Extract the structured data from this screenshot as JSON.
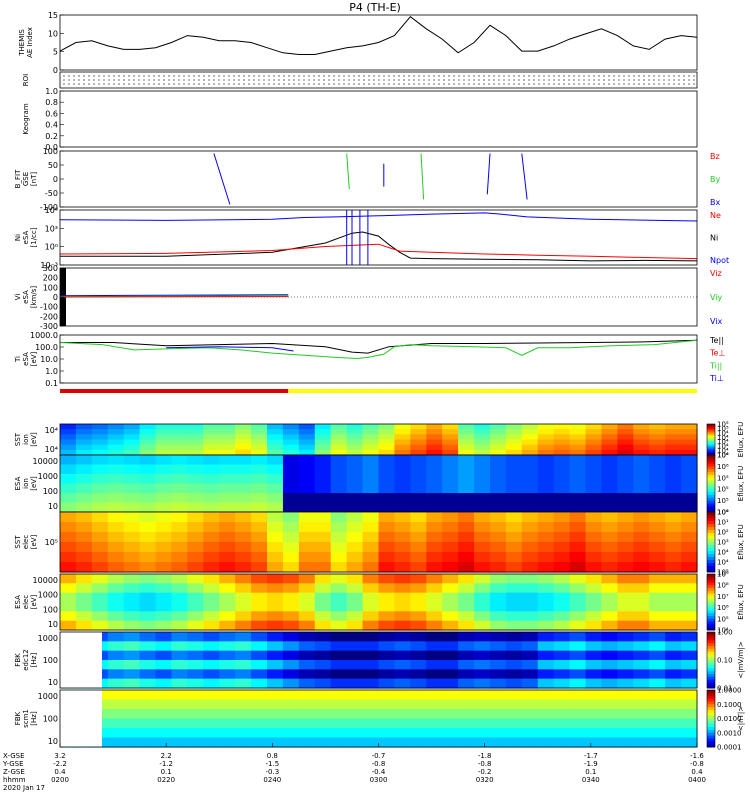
{
  "title": "P4 (TH-E)",
  "colors": {
    "red": "#ff0000",
    "green": "#22cc22",
    "blue": "#0000ff",
    "black": "#000000",
    "roi_bar": "#dd0000",
    "roi_bar_right": "#ffff00"
  },
  "chart_data": [
    {
      "panel": "ae_index",
      "type": "line",
      "ylabel_lines": [
        "THEMIS",
        "AE Index"
      ],
      "yticks": [
        "0",
        "5",
        "10",
        "15"
      ],
      "ylim": [
        0,
        16
      ],
      "series": [
        {
          "color": "black",
          "x": [
            0,
            3,
            6,
            9,
            12,
            15,
            18,
            21,
            24,
            27,
            30,
            33,
            36,
            39,
            42,
            45,
            48,
            51,
            54,
            57,
            60,
            63,
            66,
            69,
            72,
            75,
            78,
            81,
            84,
            87,
            90,
            93,
            96,
            99,
            102,
            105,
            108,
            111,
            114,
            117,
            120
          ],
          "values": [
            5.5,
            8,
            8.5,
            7,
            6,
            6,
            6.5,
            8,
            10,
            9.5,
            8.5,
            8.5,
            8,
            6.5,
            5,
            4.5,
            4.5,
            5.5,
            6.5,
            7,
            8,
            10,
            15.5,
            12,
            9,
            5,
            8,
            13,
            10,
            5.5,
            5.5,
            7,
            9,
            10.5,
            12,
            10,
            7,
            6,
            9,
            10,
            9.5
          ]
        }
      ]
    },
    {
      "panel": "roi",
      "type": "scatter",
      "ylabel_lines": [
        "ROI"
      ],
      "yticks": [],
      "ylim": [
        0,
        1
      ],
      "series": []
    },
    {
      "panel": "keogram",
      "type": "line",
      "ylabel_lines": [
        "Keogram"
      ],
      "yticks": [
        "0.0",
        "0.2",
        "0.4",
        "0.6",
        "0.8",
        "1.0"
      ],
      "ylim": [
        0,
        1
      ],
      "series": []
    },
    {
      "panel": "b_fit",
      "type": "line",
      "ylabel_lines": [
        "B_FIT",
        "GSE",
        "[nT]"
      ],
      "yticks": [
        "-100",
        "-50",
        "0",
        "50",
        "100"
      ],
      "ylim": [
        -110,
        110
      ],
      "legend": [
        {
          "text": "Bz",
          "color": "red"
        },
        {
          "text": "By",
          "color": "green"
        },
        {
          "text": "Bx",
          "color": "blue"
        }
      ],
      "series": [
        {
          "color": "blue",
          "x": [
            29,
            32
          ],
          "values": [
            100,
            -100
          ]
        },
        {
          "color": "green",
          "x": [
            54,
            54.5
          ],
          "values": [
            100,
            -40
          ]
        },
        {
          "color": "blue",
          "x": [
            61,
            61
          ],
          "values": [
            60,
            -30
          ]
        },
        {
          "color": "green",
          "x": [
            68,
            68.5
          ],
          "values": [
            100,
            -80
          ]
        },
        {
          "color": "blue",
          "x": [
            81,
            80.5
          ],
          "values": [
            100,
            -60
          ]
        },
        {
          "color": "blue",
          "x": [
            87,
            88
          ],
          "values": [
            100,
            -80
          ]
        }
      ]
    },
    {
      "panel": "ni",
      "type": "line",
      "ylabel_lines": [
        "Ni",
        "eSA",
        "[1/cc]"
      ],
      "yticks": [
        "10⁻³",
        "10⁰",
        "10³",
        "10⁶"
      ],
      "ylim": [
        -3,
        6.5
      ],
      "legend": [
        {
          "text": "Ne",
          "color": "red"
        },
        {
          "text": "Ni",
          "color": "black"
        },
        {
          "text": "Npot",
          "color": "blue"
        }
      ],
      "series": [
        {
          "color": "blue",
          "x": [
            0,
            20,
            40,
            46,
            52,
            60,
            70,
            80,
            83,
            88,
            100,
            120
          ],
          "values": [
            4.8,
            4.7,
            4.9,
            5.2,
            5.3,
            5.5,
            5.8,
            6,
            5.8,
            5.3,
            4.9,
            4.6
          ]
        },
        {
          "color": "black",
          "x": [
            0,
            20,
            40,
            50,
            55,
            57,
            60,
            62,
            64,
            66,
            70,
            80,
            90,
            100,
            110,
            120
          ],
          "values": [
            -1.5,
            -1.5,
            -0.8,
            0.8,
            2.5,
            2.7,
            2,
            0.5,
            -0.8,
            -1.8,
            -1.9,
            -2,
            -2.1,
            -2.3,
            -2.2,
            -2.3
          ]
        },
        {
          "color": "red",
          "x": [
            0,
            20,
            40,
            50,
            60,
            64,
            70,
            80,
            90,
            100,
            110,
            120
          ],
          "values": [
            -1.1,
            -1,
            -0.5,
            0.2,
            0.6,
            -0.6,
            -0.8,
            -1.1,
            -1.3,
            -1.5,
            -1.7,
            -1.9
          ]
        },
        {
          "color": "blue",
          "x": [
            54,
            54
          ],
          "values": [
            6.5,
            -3
          ]
        },
        {
          "color": "blue",
          "x": [
            55,
            55
          ],
          "values": [
            6.5,
            -3
          ]
        },
        {
          "color": "blue",
          "x": [
            56.5,
            56.5
          ],
          "values": [
            6.5,
            -3
          ]
        },
        {
          "color": "blue",
          "x": [
            58,
            58
          ],
          "values": [
            6.5,
            -3
          ]
        }
      ]
    },
    {
      "panel": "vi",
      "type": "line",
      "ylabel_lines": [
        "Vi",
        "eSA",
        "[km/s]"
      ],
      "yticks": [
        "-300",
        "-200",
        "-100",
        "0",
        "100",
        "200",
        "300"
      ],
      "ylim": [
        -330,
        330
      ],
      "legend": [
        {
          "text": "Viz",
          "color": "red"
        },
        {
          "text": "Viy",
          "color": "green"
        },
        {
          "text": "Vix",
          "color": "blue"
        }
      ],
      "series": [
        {
          "color": "blue",
          "x": [
            0,
            43
          ],
          "values": [
            15,
            25
          ]
        },
        {
          "color": "green",
          "x": [
            0,
            43
          ],
          "values": [
            5,
            15
          ]
        },
        {
          "color": "red",
          "x": [
            0,
            43
          ],
          "values": [
            0,
            5
          ]
        }
      ]
    },
    {
      "panel": "ti",
      "type": "line",
      "ylabel_lines": [
        "Ti",
        "eSA",
        "[eV]"
      ],
      "yticks": [
        "0.1",
        "1.0",
        "10.0",
        "100.0",
        "1000.0"
      ],
      "ylim": [
        -1.2,
        3.3
      ],
      "legend": [
        {
          "text": "Te||",
          "color": "black"
        },
        {
          "text": "Te⊥",
          "color": "red"
        },
        {
          "text": "Ti||",
          "color": "green"
        },
        {
          "text": "Ti⊥",
          "color": "blue"
        }
      ],
      "series": [
        {
          "color": "black",
          "x": [
            0,
            10,
            20,
            30,
            40,
            50,
            55,
            58,
            62,
            70,
            80,
            90,
            100,
            110,
            120
          ],
          "values": [
            2.6,
            2.6,
            2.3,
            2.4,
            2.5,
            2.2,
            1.7,
            1.6,
            2.2,
            2.5,
            2.5,
            2.55,
            2.6,
            2.65,
            2.8
          ]
        },
        {
          "color": "green",
          "x": [
            0,
            8,
            14,
            20,
            28,
            34,
            40,
            46,
            52,
            56,
            58,
            61,
            63,
            66,
            70,
            78,
            84,
            87,
            90,
            96,
            104,
            112,
            120
          ],
          "values": [
            2.6,
            2.4,
            1.9,
            2,
            2.1,
            1.9,
            1.6,
            1.4,
            1.2,
            1.1,
            1.2,
            1.5,
            2.2,
            2.4,
            2.3,
            2.2,
            2.1,
            1.4,
            2.1,
            2.1,
            2.3,
            2.4,
            2.8
          ]
        },
        {
          "color": "blue",
          "x": [
            20,
            30,
            40,
            44
          ],
          "values": [
            2.1,
            2.2,
            2.1,
            1.8
          ]
        }
      ]
    },
    {
      "panel": "sst_ion",
      "type": "heatmap",
      "ylabel_lines": [
        "SST",
        "ion",
        "[eV]"
      ],
      "yticks": [
        "10⁴",
        "10⁴"
      ],
      "cbar_label": "Eflux, EFU",
      "cbar_ticks": [
        "10⁴",
        "10⁴",
        "10⁴",
        "10⁴",
        "10⁴",
        "10⁴",
        "10⁵",
        "10⁵"
      ],
      "cols": [
        0.25,
        0.3,
        0.32,
        0.35,
        0.38,
        0.45,
        0.5,
        0.5,
        0.5,
        0.55,
        0.55,
        0.6,
        0.55,
        0.4,
        0.35,
        0.3,
        0.45,
        0.55,
        0.5,
        0.55,
        0.6,
        0.7,
        0.75,
        0.8,
        0.75,
        0.55,
        0.5,
        0.55,
        0.6,
        0.65,
        0.7,
        0.72,
        0.7,
        0.75,
        0.8,
        0.85,
        0.8,
        0.78,
        0.8,
        0.8
      ]
    },
    {
      "panel": "esa_ion",
      "type": "heatmap",
      "ylabel_lines": [
        "ESA",
        "ion",
        "[eV]"
      ],
      "yticks": [
        "10",
        "100",
        "1000",
        "10000"
      ],
      "cbar_label": "Eflux, EFU",
      "cbar_ticks": [
        "10⁴",
        "10⁵",
        "10⁵",
        "10⁵",
        "10⁶",
        "10⁶"
      ],
      "cols": [
        0.3,
        0.32,
        0.34,
        0.35,
        0.34,
        0.33,
        0.35,
        0.36,
        0.35,
        0.34,
        0.35,
        0.35,
        0.36,
        0.34,
        0.1,
        0.12,
        0.15,
        0.2,
        0.22,
        0.25,
        0.2,
        0.18,
        0.2,
        0.22,
        0.25,
        0.28,
        0.25,
        0.22,
        0.2,
        0.2,
        0.18,
        0.2,
        0.22,
        0.2,
        0.18,
        0.2,
        0.22,
        0.2,
        0.18,
        0.2
      ]
    },
    {
      "panel": "sst_elec",
      "type": "heatmap",
      "ylabel_lines": [
        "SST",
        "elec",
        "[eV]"
      ],
      "yticks": [
        "10⁵"
      ],
      "cbar_label": "Eflux, EFU",
      "cbar_ticks": [
        "10⁵",
        "10⁴",
        "10⁴",
        "10³",
        "10²",
        "10¹",
        "10⁰"
      ],
      "cols": [
        0.8,
        0.78,
        0.75,
        0.72,
        0.7,
        0.68,
        0.7,
        0.72,
        0.75,
        0.78,
        0.8,
        0.78,
        0.75,
        0.65,
        0.6,
        0.7,
        0.7,
        0.6,
        0.65,
        0.7,
        0.8,
        0.78,
        0.75,
        0.8,
        0.82,
        0.85,
        0.8,
        0.78,
        0.75,
        0.78,
        0.8,
        0.82,
        0.85,
        0.8,
        0.78,
        0.8,
        0.82,
        0.8,
        0.78,
        0.8
      ]
    },
    {
      "panel": "esa_elec",
      "type": "heatmap",
      "ylabel_lines": [
        "ESA",
        "elec",
        "[eV]"
      ],
      "yticks": [
        "10",
        "100",
        "1000",
        "10000"
      ],
      "cbar_label": "Eflux, EFU",
      "cbar_ticks": [
        "10⁴",
        "10⁵",
        "10⁶",
        "10⁷",
        "10⁸",
        "10⁹"
      ],
      "cols": [
        0.5,
        0.45,
        0.4,
        0.35,
        0.32,
        0.3,
        0.32,
        0.35,
        0.4,
        0.45,
        0.5,
        0.55,
        0.6,
        0.62,
        0.6,
        0.55,
        0.45,
        0.4,
        0.45,
        0.55,
        0.6,
        0.62,
        0.6,
        0.55,
        0.5,
        0.45,
        0.38,
        0.32,
        0.3,
        0.3,
        0.32,
        0.35,
        0.4,
        0.45,
        0.5,
        0.55,
        0.55,
        0.5,
        0.5,
        0.5
      ]
    },
    {
      "panel": "fbk_edc12",
      "type": "heatmap",
      "ylabel_lines": [
        "FBK",
        "edc12",
        "[Hz]"
      ],
      "yticks": [
        "10",
        "100",
        "1000"
      ],
      "cbar_label": "<|mV/m|>",
      "cbar_ticks": [
        "0.01",
        "0.10",
        "1.00"
      ],
      "cols": [
        0.3,
        0.28,
        0.25,
        0.3,
        0.32,
        0.28,
        0.25,
        0.3,
        0.28,
        0.25,
        0.28,
        0.3,
        0.25,
        0.2,
        0.15,
        0.1,
        0.08,
        0.05,
        0.05,
        0.05,
        0.08,
        0.1,
        0.08,
        0.05,
        0.05,
        0.1,
        0.12,
        0.1,
        0.08,
        0.1,
        0.2,
        0.22,
        0.25,
        0.2,
        0.18,
        0.2,
        0.22,
        0.25,
        0.2,
        0.22
      ]
    },
    {
      "panel": "fbk_scm1",
      "type": "heatmap",
      "ylabel_lines": [
        "FBK",
        "scm1",
        "[Hz]"
      ],
      "yticks": [
        "10",
        "100",
        "1000"
      ],
      "cbar_label": "<|nT|>",
      "cbar_ticks": [
        "0.0001",
        "0.0010",
        "0.0100",
        "0.1000",
        "1.0000"
      ],
      "cols": [
        0.5,
        0.5,
        0.5,
        0.5,
        0.5,
        0.5,
        0.5,
        0.5,
        0.5,
        0.5,
        0.5,
        0.5,
        0.5,
        0.5,
        0.5,
        0.5,
        0.5,
        0.5,
        0.5,
        0.5,
        0.5,
        0.5,
        0.5,
        0.5,
        0.5,
        0.5,
        0.5,
        0.5,
        0.5,
        0.5,
        0.5,
        0.5,
        0.5,
        0.5,
        0.5,
        0.5,
        0.5,
        0.5,
        0.5,
        0.5
      ]
    }
  ],
  "x_axis": {
    "row_labels": [
      "X-GSE",
      "Y-GSE",
      "Z-GSE",
      "hhmm",
      "2020 Jan 17"
    ],
    "ticks": [
      {
        "x": 0,
        "vals": [
          "3.2",
          "-2.2",
          "0.4",
          "0200"
        ]
      },
      {
        "x": 20,
        "vals": [
          "2.2",
          "-1.2",
          "0.1",
          "0220"
        ]
      },
      {
        "x": 40,
        "vals": [
          "0.8",
          "-1.5",
          "-0.3",
          "0240"
        ]
      },
      {
        "x": 60,
        "vals": [
          "-0.7",
          "-0.8",
          "-0.4",
          "0300"
        ]
      },
      {
        "x": 80,
        "vals": [
          "-1.8",
          "-0.8",
          "-0.2",
          "0320"
        ]
      },
      {
        "x": 100,
        "vals": [
          "-1.7",
          "-1.9",
          "0.1",
          "0340"
        ]
      },
      {
        "x": 120,
        "vals": [
          "-1.6",
          "-0.8",
          "0.4",
          "0400"
        ]
      }
    ],
    "xlim": [
      0,
      120
    ]
  }
}
